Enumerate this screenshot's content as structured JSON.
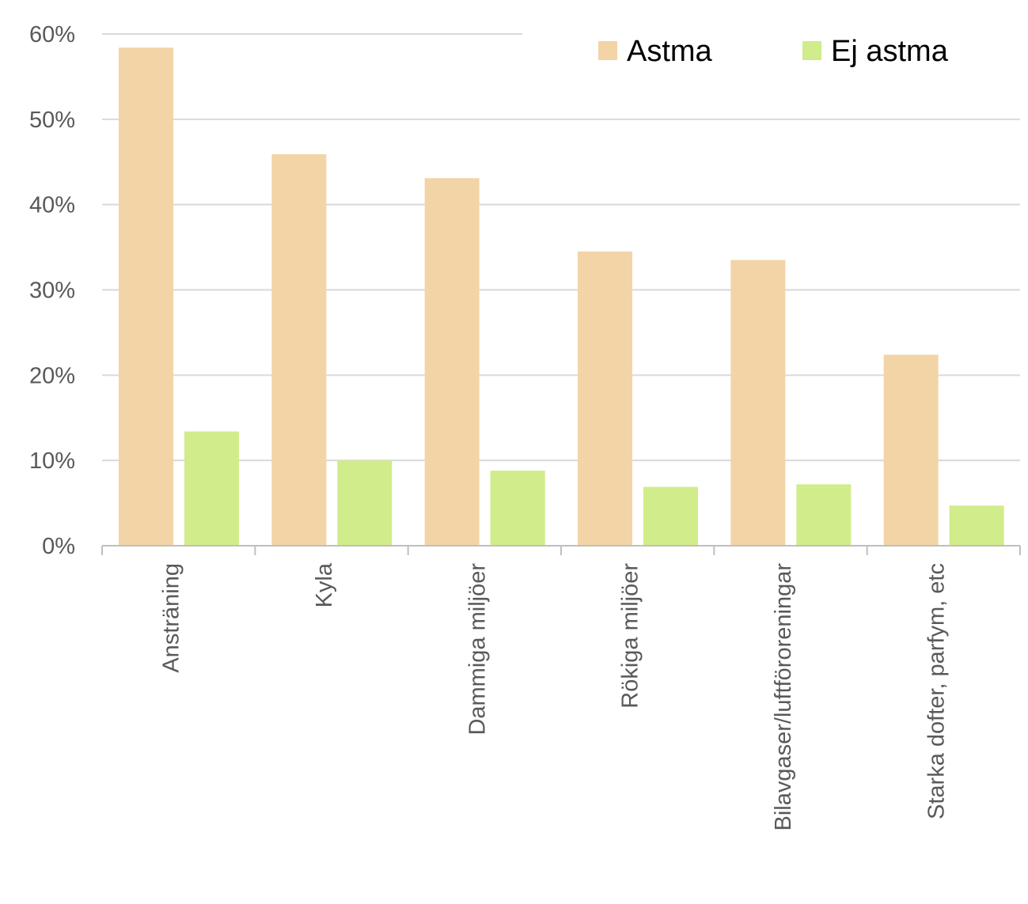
{
  "chart_data": {
    "type": "bar",
    "title": "",
    "xlabel": "",
    "ylabel": "",
    "categories": [
      "Ansträning",
      "Kyla",
      "Dammiga miljöer",
      "Rökiga miljöer",
      "Bilavgaser/luftföroreningar",
      "Starka dofter, parfym, etc"
    ],
    "series": [
      {
        "name": "Astma",
        "color": "#f3d4a6",
        "values": [
          58.4,
          45.9,
          43.1,
          34.5,
          33.5,
          22.4
        ]
      },
      {
        "name": "Ej astma",
        "color": "#d1ec8a",
        "values": [
          13.4,
          10.0,
          8.8,
          6.9,
          7.2,
          4.7
        ]
      }
    ],
    "ylim": [
      0,
      60
    ],
    "yticks": [
      0,
      10,
      20,
      30,
      40,
      50,
      60
    ],
    "ytick_labels": [
      "0%",
      "10%",
      "20%",
      "30%",
      "40%",
      "50%",
      "60%"
    ],
    "grid": true,
    "legend_position": "top-right",
    "gridline_color": "#d9d9d9",
    "axis_color": "#bfbfbf"
  }
}
